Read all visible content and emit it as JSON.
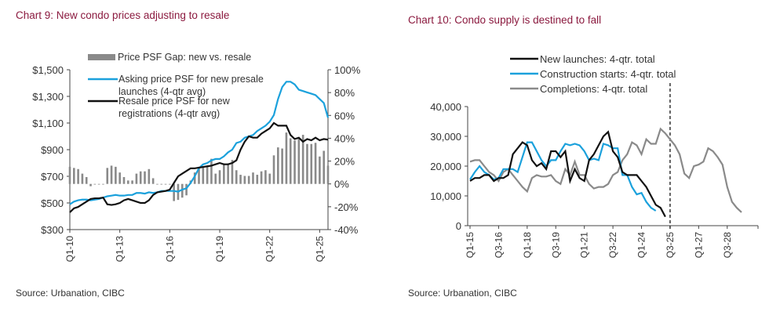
{
  "chart_data": [
    {
      "type": "bar+line",
      "title": "Chart 9: New condo prices adjusting to resale",
      "source": "Source: Urbanation, CIBC",
      "x_ticks": [
        "Q1-10",
        "Q1-13",
        "Q1-16",
        "Q1-19",
        "Q1-22",
        "Q1-25"
      ],
      "x_start": "Q1-10",
      "left_axis": {
        "ticks": [
          "$300",
          "$500",
          "$700",
          "$900",
          "$1,100",
          "$1,300",
          "$1,500"
        ],
        "ylim": [
          300,
          1500
        ]
      },
      "right_axis": {
        "ticks": [
          "-40%",
          "-20%",
          "0%",
          "20%",
          "40%",
          "60%",
          "80%",
          "100%"
        ],
        "ylim": [
          -40,
          100
        ]
      },
      "legend_placement": "top-left",
      "series": [
        {
          "name": "Price PSF Gap: new vs. resale",
          "kind": "bar",
          "axis": "right",
          "color": "#8a8a8a",
          "values": [
            15,
            14,
            13,
            9,
            6,
            -2,
            0,
            0,
            0,
            14,
            16,
            15,
            10,
            6,
            3,
            3,
            9,
            11,
            11,
            13,
            5,
            0,
            0,
            0,
            0,
            -15,
            -14,
            -12,
            -10,
            3,
            10,
            15,
            15,
            15,
            22,
            9,
            12,
            18,
            18,
            21,
            12,
            8,
            7,
            7,
            10,
            8,
            11,
            12,
            9,
            25,
            32,
            31,
            45,
            40,
            38,
            40,
            43,
            35,
            35,
            36,
            24,
            29,
            16
          ]
        },
        {
          "name": "Asking price PSF for new presale launches (4-qtr avg)",
          "kind": "line",
          "axis": "left",
          "color": "#1ba1dc",
          "values": [
            490,
            510,
            520,
            525,
            525,
            520,
            525,
            530,
            540,
            550,
            555,
            560,
            555,
            555,
            560,
            560,
            575,
            575,
            570,
            580,
            575,
            580,
            590,
            590,
            590,
            590,
            585,
            600,
            610,
            650,
            700,
            760,
            790,
            800,
            820,
            830,
            830,
            850,
            880,
            900,
            950,
            960,
            990,
            1000,
            1010,
            1040,
            1060,
            1080,
            1110,
            1160,
            1280,
            1370,
            1410,
            1410,
            1390,
            1350,
            1340,
            1330,
            1320,
            1310,
            1280,
            1250,
            1140
          ]
        },
        {
          "name": "Resale price PSF for new registrations (4-qtr avg)",
          "kind": "line",
          "axis": "left",
          "color": "#111111",
          "values": [
            430,
            460,
            470,
            490,
            510,
            530,
            535,
            535,
            540,
            490,
            485,
            490,
            500,
            520,
            530,
            520,
            510,
            500,
            500,
            520,
            560,
            580,
            585,
            590,
            600,
            650,
            700,
            720,
            740,
            760,
            760,
            765,
            770,
            775,
            780,
            790,
            800,
            790,
            790,
            800,
            820,
            900,
            960,
            1000,
            990,
            990,
            1020,
            1040,
            1060,
            1100,
            1080,
            1080,
            1080,
            1010,
            980,
            990,
            960,
            980,
            970,
            990,
            970,
            980,
            975
          ]
        }
      ]
    },
    {
      "type": "line",
      "title": "Chart 10: Condo supply is destined to fall",
      "source": "Source: Urbanation, CIBC",
      "x_ticks": [
        "Q1-15",
        "Q3-16",
        "Q1-18",
        "Q3-19",
        "Q1-21",
        "Q3-22",
        "Q1-24",
        "Q3-25",
        "Q1-27",
        "Q3-28"
      ],
      "x_start": "Q1-15",
      "y_ticks": [
        "0",
        "10,000",
        "20,000",
        "30,000",
        "40,000"
      ],
      "ylim": [
        0,
        40000
      ],
      "forecast_marker": "Q3-25",
      "legend_placement": "top",
      "series": [
        {
          "name": "New launches: 4-qtr. total",
          "color": "#111111",
          "values": [
            15000,
            16000,
            16000,
            17000,
            17000,
            15000,
            16000,
            16000,
            17000,
            24000,
            26000,
            28000,
            27000,
            22000,
            20000,
            21000,
            19000,
            25000,
            25000,
            23000,
            25000,
            15000,
            19000,
            16000,
            15000,
            22000,
            24000,
            27000,
            30000,
            31500,
            25000,
            23000,
            18000,
            17000,
            17000,
            17000,
            15000,
            13000,
            10000,
            7000,
            6000,
            3000
          ]
        },
        {
          "name": "Construction starts: 4-qtr. total",
          "color": "#1ba1dc",
          "values": [
            15500,
            18000,
            20000,
            18000,
            17000,
            15500,
            16000,
            19000,
            19000,
            19000,
            18000,
            23000,
            28000,
            28000,
            25000,
            22000,
            20000,
            22000,
            22000,
            25000,
            27500,
            27000,
            27500,
            27000,
            25000,
            22000,
            22500,
            22000,
            27500,
            27000,
            26000,
            26000,
            17000,
            17000,
            13000,
            10500,
            11000,
            8000,
            6000,
            5000
          ]
        },
        {
          "name": "Completions: 4-qtr. total",
          "color": "#8a8a8a",
          "values": [
            21500,
            22000,
            22000,
            20000,
            18000,
            17000,
            15000,
            18000,
            19000,
            17000,
            15000,
            13000,
            11500,
            16000,
            17000,
            16500,
            16500,
            17000,
            15000,
            14000,
            19000,
            17000,
            21500,
            17000,
            17000,
            14000,
            12500,
            13000,
            13000,
            14000,
            17000,
            18000,
            22000,
            24000,
            28000,
            27000,
            24000,
            29000,
            27500,
            27500,
            32500,
            31000,
            29000,
            27000,
            24000,
            17500,
            16000,
            20000,
            20500,
            21500,
            26000,
            25000,
            23000,
            20500,
            13000,
            8000,
            6000,
            4500
          ]
        }
      ]
    }
  ]
}
